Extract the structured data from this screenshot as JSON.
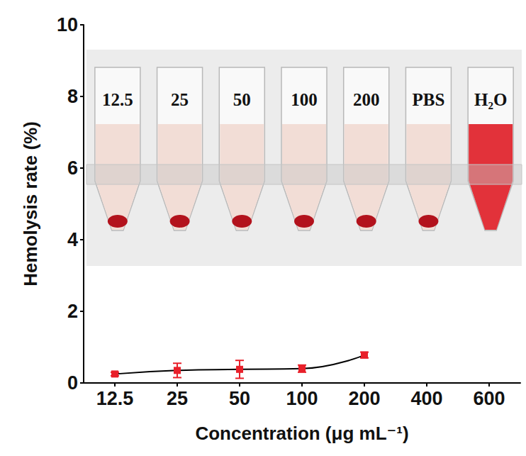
{
  "chart_data": {
    "type": "line",
    "x_label": "Concentration (μg mL⁻¹)",
    "y_label": "Hemolysis rate (%)",
    "categories": [
      "12.5",
      "25",
      "50",
      "100",
      "200",
      "400",
      "600"
    ],
    "values": [
      0.25,
      0.35,
      0.38,
      0.4,
      0.78,
      null,
      null
    ],
    "errors": [
      0.05,
      0.2,
      0.25,
      0.1,
      0.08,
      null,
      null
    ],
    "color": "#e8202a",
    "marker": "square",
    "line_style": "smooth",
    "ylim": [
      0,
      10
    ],
    "yticks": [
      0,
      2,
      4,
      6,
      8,
      10
    ],
    "grid": false,
    "inset": {
      "tube_labels": [
        "12.5",
        "25",
        "50",
        "100",
        "200",
        "PBS",
        "H₂O"
      ]
    }
  }
}
